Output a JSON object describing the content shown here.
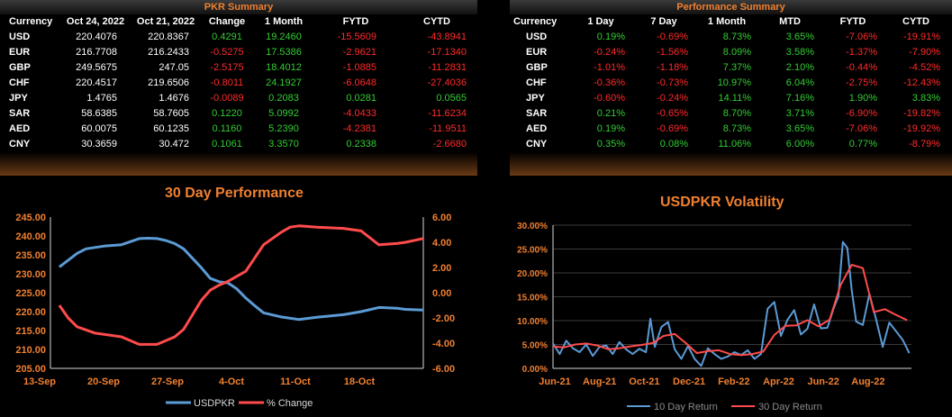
{
  "pkr_summary": {
    "title": "PKR Summary",
    "columns": [
      "Currency",
      "Oct 24, 2022",
      "Oct 21, 2022",
      "Change",
      "1 Month",
      "FYTD",
      "CYTD"
    ],
    "rows": [
      {
        "cur": "USD",
        "d1": "220.4076",
        "d2": "220.8367",
        "chg": "0.4291",
        "m1": "19.2460",
        "fytd": "-15.5609",
        "cytd": "-43.8941"
      },
      {
        "cur": "EUR",
        "d1": "216.7708",
        "d2": "216.2433",
        "chg": "-0.5275",
        "m1": "17.5386",
        "fytd": "-2.9621",
        "cytd": "-17.1340"
      },
      {
        "cur": "GBP",
        "d1": "249.5675",
        "d2": "247.05",
        "chg": "-2.5175",
        "m1": "18.4012",
        "fytd": "-1.0885",
        "cytd": "-11.2831"
      },
      {
        "cur": "CHF",
        "d1": "220.4517",
        "d2": "219.6506",
        "chg": "-0.8011",
        "m1": "24.1927",
        "fytd": "-6.0648",
        "cytd": "-27.4036"
      },
      {
        "cur": "JPY",
        "d1": "1.4765",
        "d2": "1.4676",
        "chg": "-0.0089",
        "m1": "0.2083",
        "fytd": "0.0281",
        "cytd": "0.0565"
      },
      {
        "cur": "SAR",
        "d1": "58.6385",
        "d2": "58.7605",
        "chg": "0.1220",
        "m1": "5.0992",
        "fytd": "-4.0433",
        "cytd": "-11.6234"
      },
      {
        "cur": "AED",
        "d1": "60.0075",
        "d2": "60.1235",
        "chg": "0.1160",
        "m1": "5.2390",
        "fytd": "-4.2381",
        "cytd": "-11.9511"
      },
      {
        "cur": "CNY",
        "d1": "30.3659",
        "d2": "30.472",
        "chg": "0.1061",
        "m1": "3.3570",
        "fytd": "0.2338",
        "cytd": "-2.6680"
      }
    ]
  },
  "performance_summary": {
    "title": "Performance Summary",
    "columns": [
      "Currency",
      "1 Day",
      "7 Day",
      "1 Month",
      "MTD",
      "FYTD",
      "CYTD"
    ],
    "rows": [
      {
        "cur": "USD",
        "d1": "0.19%",
        "d7": "-0.69%",
        "m1": "8.73%",
        "mtd": "3.65%",
        "fytd": "-7.06%",
        "cytd": "-19.91%"
      },
      {
        "cur": "EUR",
        "d1": "-0.24%",
        "d7": "-1.56%",
        "m1": "8.09%",
        "mtd": "3.58%",
        "fytd": "-1.37%",
        "cytd": "-7.90%"
      },
      {
        "cur": "GBP",
        "d1": "-1.01%",
        "d7": "-1.18%",
        "m1": "7.37%",
        "mtd": "2.10%",
        "fytd": "-0.44%",
        "cytd": "-4.52%"
      },
      {
        "cur": "CHF",
        "d1": "-0.36%",
        "d7": "-0.73%",
        "m1": "10.97%",
        "mtd": "6.04%",
        "fytd": "-2.75%",
        "cytd": "-12.43%"
      },
      {
        "cur": "JPY",
        "d1": "-0.60%",
        "d7": "-0.24%",
        "m1": "14.11%",
        "mtd": "7.16%",
        "fytd": "1.90%",
        "cytd": "3.83%"
      },
      {
        "cur": "SAR",
        "d1": "0.21%",
        "d7": "-0.65%",
        "m1": "8.70%",
        "mtd": "3.71%",
        "fytd": "-6.90%",
        "cytd": "-19.82%"
      },
      {
        "cur": "AED",
        "d1": "0.19%",
        "d7": "-0.69%",
        "m1": "8.73%",
        "mtd": "3.65%",
        "fytd": "-7.06%",
        "cytd": "-19.92%"
      },
      {
        "cur": "CNY",
        "d1": "0.35%",
        "d7": "0.08%",
        "m1": "11.06%",
        "mtd": "6.00%",
        "fytd": "0.77%",
        "cytd": "-8.79%"
      }
    ]
  },
  "colors": {
    "pos": "#33CC33",
    "neg": "#FF2A2A",
    "accent": "#F08030",
    "blue": "#5B9BD5",
    "red": "#FF4B4B",
    "axis": "#F08030"
  },
  "chart_data": [
    {
      "type": "line",
      "title": "30 Day Performance",
      "x_ticks": [
        "13-Sep",
        "20-Sep",
        "27-Sep",
        "4-Oct",
        "11-Oct",
        "18-Oct"
      ],
      "y_left_ticks": [
        "245.00",
        "240.00",
        "235.00",
        "230.00",
        "225.00",
        "220.00",
        "215.00",
        "210.00",
        "205.00"
      ],
      "y_right_ticks": [
        "6.00",
        "4.00",
        "2.00",
        "0.00",
        "-2.00",
        "-4.00",
        "-6.00"
      ],
      "ylim_left": [
        205,
        245
      ],
      "ylim_right": [
        -6,
        6
      ],
      "x_range": [
        0,
        42
      ],
      "legend_position": "bottom",
      "series": [
        {
          "name": "USDPKR",
          "axis": "left",
          "color": "#5B9BD5",
          "x": [
            1,
            2,
            3,
            4,
            6,
            8,
            10,
            11,
            12,
            13,
            14,
            15,
            17,
            18,
            19,
            20,
            21,
            22,
            23,
            24,
            26,
            28,
            30,
            33,
            35,
            37,
            39,
            40,
            42
          ],
          "y": [
            231.8,
            233.6,
            235.4,
            236.6,
            237.3,
            237.7,
            239.3,
            239.4,
            239.3,
            238.8,
            238.0,
            236.6,
            231.6,
            228.8,
            227.9,
            227.6,
            226.0,
            223.6,
            221.6,
            219.7,
            218.6,
            217.9,
            218.5,
            219.2,
            220.0,
            221.1,
            220.9,
            220.6,
            220.4
          ]
        },
        {
          "name": "% Change",
          "axis": "right",
          "color": "#FF4B4B",
          "x": [
            1,
            2,
            3,
            5,
            8,
            10,
            11,
            12,
            13,
            14,
            15,
            17,
            18,
            19,
            20,
            22,
            24,
            26,
            27,
            28,
            30,
            33,
            35,
            37,
            39,
            40,
            42
          ],
          "y": [
            -1.0,
            -2.0,
            -2.7,
            -3.2,
            -3.5,
            -4.1,
            -4.1,
            -4.1,
            -3.8,
            -3.5,
            -2.9,
            -0.6,
            0.2,
            0.6,
            0.9,
            1.7,
            3.8,
            4.8,
            5.2,
            5.3,
            5.2,
            5.1,
            4.9,
            3.8,
            3.9,
            4.0,
            4.3
          ]
        }
      ]
    },
    {
      "type": "line",
      "title": "USDPKR Volatility",
      "x_ticks": [
        "Jun-21",
        "Aug-21",
        "Oct-21",
        "Dec-21",
        "Feb-22",
        "Apr-22",
        "Jun-22",
        "Aug-22"
      ],
      "y_ticks": [
        "30.00%",
        "25.00%",
        "20.00%",
        "15.00%",
        "10.00%",
        "5.00%",
        "0.00%"
      ],
      "ylim": [
        0,
        30
      ],
      "x_range": [
        0,
        16.2
      ],
      "legend_position": "bottom",
      "series": [
        {
          "name": "10 Day Return",
          "color": "#5B9BD5",
          "x": [
            0,
            0.3,
            0.6,
            0.9,
            1.2,
            1.5,
            1.8,
            2.1,
            2.4,
            2.7,
            3.0,
            3.3,
            3.6,
            3.9,
            4.2,
            4.4,
            4.6,
            4.9,
            5.2,
            5.5,
            5.8,
            6.1,
            6.4,
            6.7,
            7.0,
            7.3,
            7.6,
            7.9,
            8.2,
            8.5,
            8.8,
            9.1,
            9.4,
            9.7,
            10.0,
            10.3,
            10.6,
            10.9,
            11.2,
            11.5,
            11.8,
            12.1,
            12.4,
            12.7,
            12.9,
            13.1,
            13.3,
            13.5,
            13.7,
            14.0,
            14.3,
            14.6,
            14.9,
            15.2,
            15.5,
            15.8,
            16.1
          ],
          "y": [
            5.2,
            3.0,
            5.8,
            4.2,
            3.4,
            5.0,
            2.6,
            4.5,
            4.8,
            3.0,
            5.5,
            4.0,
            3.0,
            4.1,
            3.4,
            10.4,
            4.5,
            8.7,
            9.7,
            4.0,
            2.0,
            4.7,
            2.0,
            0.5,
            4.2,
            3.0,
            2.0,
            2.5,
            3.4,
            2.8,
            3.8,
            2.0,
            3.0,
            12.5,
            13.9,
            6.8,
            10.2,
            12.2,
            7.1,
            8.3,
            13.4,
            8.4,
            8.5,
            12.8,
            15.1,
            26.5,
            25.2,
            16.3,
            9.8,
            9.1,
            15.6,
            10.3,
            4.5,
            9.6,
            7.8,
            6.0,
            3.2
          ]
        },
        {
          "name": "30 Day Return",
          "color": "#FF4B4B",
          "x": [
            0,
            0.5,
            1.0,
            1.5,
            2.0,
            2.5,
            3.0,
            3.5,
            4.0,
            4.5,
            5.0,
            5.5,
            6.0,
            6.5,
            7.0,
            7.5,
            8.0,
            8.5,
            9.0,
            9.5,
            10.0,
            10.5,
            11.0,
            11.5,
            12.0,
            12.5,
            13.0,
            13.5,
            14.0,
            14.5,
            15.0,
            15.5,
            16.0
          ],
          "y": [
            4.6,
            4.4,
            5.0,
            5.2,
            4.8,
            4.0,
            4.2,
            4.6,
            4.9,
            5.3,
            6.8,
            7.2,
            5.3,
            3.2,
            3.6,
            3.8,
            3.0,
            2.8,
            3.0,
            3.5,
            7.0,
            8.9,
            9.0,
            10.1,
            8.8,
            10.2,
            17.5,
            21.7,
            21.0,
            11.8,
            12.4,
            11.2,
            10.1
          ]
        }
      ]
    }
  ]
}
